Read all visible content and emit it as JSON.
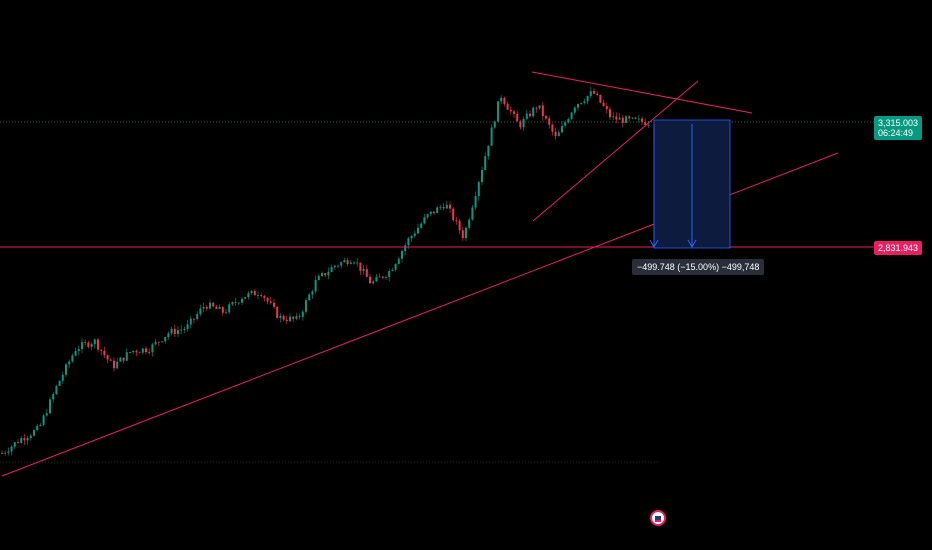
{
  "chart_data": {
    "type": "candlestick",
    "current_price": "3,315.003",
    "countdown": "06:24:49",
    "target_price": "2,831.943",
    "measure_label": "−499.748 (−15.00%) −499,748",
    "colors": {
      "background": "#000000",
      "up": "#089981",
      "down": "#f23645",
      "trendline": "#e91e63",
      "measure_fill": "#0d1b3e",
      "measure_line": "#2962ff",
      "current_price_badge": "#089981",
      "target_price_badge": "#e91e63"
    },
    "price_axis": "right",
    "approx_price_path": [
      2035,
      2090,
      2130,
      2300,
      2440,
      2470,
      2370,
      2430,
      2440,
      2500,
      2520,
      2610,
      2580,
      2640,
      2660,
      2560,
      2550,
      2700,
      2760,
      2790,
      2690,
      2740,
      2860,
      2950,
      3000,
      2870,
      3140,
      3420,
      3300,
      3380,
      3250,
      3380,
      3430,
      3330,
      3320,
      3315
    ]
  },
  "icons": [
    "flag-icon"
  ]
}
